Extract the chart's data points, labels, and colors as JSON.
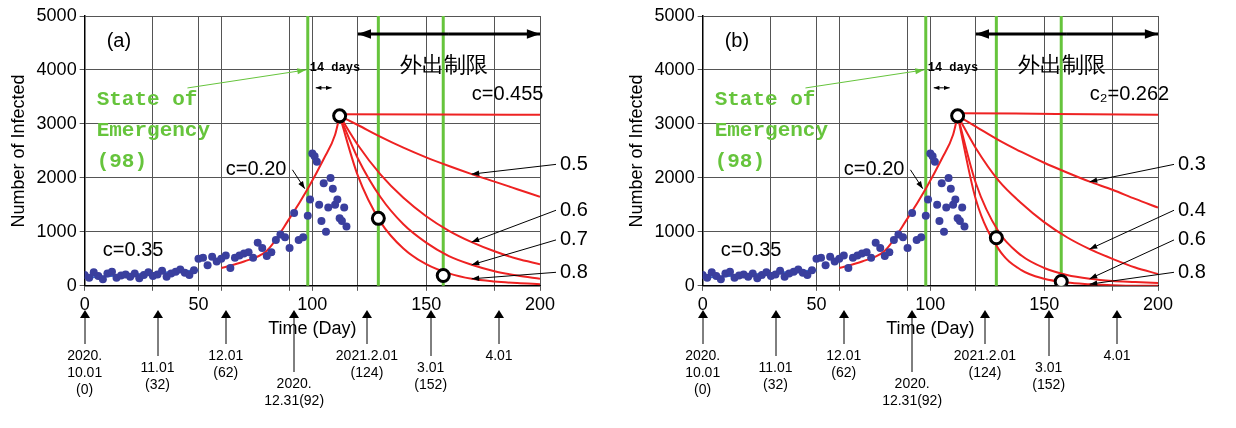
{
  "chart_data": [
    {
      "type": "line",
      "xlabel": "Time (Day)",
      "ylabel": "Number of Infected",
      "xlim": [
        0,
        200
      ],
      "ylim": [
        0,
        5000
      ],
      "xticks": [
        0,
        {
          "value": 30,
          "label": null
        },
        50,
        {
          "value": 60,
          "label": null
        },
        {
          "value": 90,
          "label": null
        },
        100,
        {
          "value": 120,
          "label": null
        },
        150,
        {
          "value": 180,
          "label": null
        },
        200
      ],
      "yticks": [
        0,
        1000,
        2000,
        3000,
        4000,
        5000
      ],
      "grid": true,
      "legend": false,
      "series": [
        {
          "type": "scatter",
          "color": "#3a3f9e",
          "marker": "circle",
          "x": [
            0,
            2,
            4,
            6,
            8,
            10,
            12,
            14,
            16,
            18,
            20,
            22,
            24,
            26,
            28,
            30,
            32,
            34,
            36,
            38,
            40,
            42,
            44,
            46,
            48,
            50,
            52,
            54,
            56,
            58,
            60,
            62,
            64,
            66,
            68,
            70,
            72,
            74,
            76,
            78,
            80,
            82,
            84,
            86,
            88,
            90,
            92,
            94,
            96,
            98,
            99,
            100,
            101,
            102,
            103,
            104,
            105,
            106,
            107,
            108,
            109,
            110,
            111,
            112,
            113,
            114,
            115
          ],
          "values": [
            200,
            150,
            250,
            180,
            120,
            230,
            260,
            150,
            190,
            210,
            170,
            230,
            140,
            200,
            250,
            180,
            210,
            280,
            170,
            230,
            260,
            300,
            240,
            200,
            290,
            500,
            520,
            380,
            540,
            450,
            500,
            560,
            330,
            520,
            560,
            600,
            620,
            520,
            800,
            700,
            550,
            620,
            850,
            950,
            900,
            700,
            1350,
            850,
            900,
            1300,
            1600,
            2450,
            2400,
            2300,
            1500,
            1200,
            1900,
            1000,
            1450,
            2000,
            1800,
            1500,
            1600,
            1250,
            1200,
            1450,
            1100
          ]
        },
        {
          "type": "line",
          "name": "c=0.35",
          "color": "#3366cc",
          "x": [
            0,
            50
          ],
          "values": [
            150,
            290
          ]
        },
        {
          "type": "line",
          "name": "c=0.20",
          "color": "#ee2222",
          "x": [
            60,
            70,
            80,
            90,
            98,
            105,
            110,
            112
          ],
          "values": [
            330,
            450,
            650,
            1250,
            1800,
            2350,
            2800,
            3150
          ]
        },
        {
          "type": "line",
          "name": "c=0.455",
          "color": "#ee2222",
          "x": [
            112,
            200
          ],
          "values": [
            3180,
            3170
          ]
        },
        {
          "type": "line",
          "name": "0.5",
          "color": "#ee2222",
          "x": [
            112,
            120,
            130,
            140,
            150,
            160,
            170,
            180,
            190,
            200
          ],
          "values": [
            3150,
            2980,
            2760,
            2560,
            2380,
            2220,
            2070,
            1930,
            1790,
            1650
          ]
        },
        {
          "type": "line",
          "name": "0.6",
          "color": "#ee2222",
          "x": [
            112,
            120,
            130,
            140,
            150,
            160,
            170,
            180,
            190,
            200
          ],
          "values": [
            3150,
            2610,
            2060,
            1630,
            1290,
            1020,
            810,
            640,
            500,
            400
          ]
        },
        {
          "type": "line",
          "name": "0.7",
          "color": "#ee2222",
          "x": [
            112,
            120,
            130,
            140,
            150,
            160,
            170,
            180,
            190,
            200
          ],
          "values": [
            3150,
            2360,
            1640,
            1140,
            800,
            550,
            390,
            270,
            190,
            130
          ]
        },
        {
          "type": "line",
          "name": "0.8",
          "color": "#ee2222",
          "x": [
            112,
            120,
            130,
            140,
            150,
            160,
            170,
            180,
            190,
            200
          ],
          "values": [
            3150,
            2040,
            1180,
            690,
            400,
            230,
            130,
            80,
            50,
            30
          ]
        },
        {
          "type": "scatter",
          "color": "#000000",
          "marker": "circle",
          "x": [
            112,
            129,
            157.5
          ],
          "values": [
            3150,
            1250,
            190
          ]
        }
      ],
      "ref_lines": [
        {
          "axis": "x",
          "value": 98,
          "color": "#66c43c"
        },
        {
          "axis": "x",
          "value": 129,
          "color": "#66c43c"
        },
        {
          "axis": "x",
          "value": 157.5,
          "color": "#66c43c"
        }
      ],
      "annotations": [
        "(a)",
        "外出制限",
        {
          "text": "State of\nEmergency\n(98)",
          "x": 98,
          "y": 4000
        },
        "14 days",
        "2020.\n10.01\n(0)",
        "11.01\n(32)",
        "12.01\n(62)",
        "2020.\n12.31(92)",
        "2021.2.01\n(124)",
        "3.01\n(152)",
        "4.01"
      ]
    },
    {
      "type": "line",
      "xlabel": "Time (Day)",
      "ylabel": "Number of Infected",
      "xlim": [
        0,
        200
      ],
      "ylim": [
        0,
        5000
      ],
      "xticks": [
        0,
        {
          "value": 30,
          "label": null
        },
        50,
        {
          "value": 60,
          "label": null
        },
        {
          "value": 90,
          "label": null
        },
        100,
        {
          "value": 120,
          "label": null
        },
        150,
        {
          "value": 180,
          "label": null
        },
        200
      ],
      "yticks": [
        0,
        1000,
        2000,
        3000,
        4000,
        5000
      ],
      "grid": true,
      "legend": false,
      "series": [
        {
          "type": "scatter",
          "color": "#3a3f9e",
          "marker": "circle",
          "x": [
            0,
            2,
            4,
            6,
            8,
            10,
            12,
            14,
            16,
            18,
            20,
            22,
            24,
            26,
            28,
            30,
            32,
            34,
            36,
            38,
            40,
            42,
            44,
            46,
            48,
            50,
            52,
            54,
            56,
            58,
            60,
            62,
            64,
            66,
            68,
            70,
            72,
            74,
            76,
            78,
            80,
            82,
            84,
            86,
            88,
            90,
            92,
            94,
            96,
            98,
            99,
            100,
            101,
            102,
            103,
            104,
            105,
            106,
            107,
            108,
            109,
            110,
            111,
            112,
            113,
            114,
            115
          ],
          "values": [
            200,
            150,
            250,
            180,
            120,
            230,
            260,
            150,
            190,
            210,
            170,
            230,
            140,
            200,
            250,
            180,
            210,
            280,
            170,
            230,
            260,
            300,
            240,
            200,
            290,
            500,
            520,
            380,
            540,
            450,
            500,
            560,
            330,
            520,
            560,
            600,
            620,
            520,
            800,
            700,
            550,
            620,
            850,
            950,
            900,
            700,
            1350,
            850,
            900,
            1300,
            1600,
            2450,
            2400,
            2300,
            1500,
            1200,
            1900,
            1000,
            1450,
            2000,
            1800,
            1500,
            1600,
            1250,
            1200,
            1450,
            1100
          ]
        },
        {
          "type": "line",
          "name": "c=0.35",
          "color": "#3366cc",
          "x": [
            0,
            50
          ],
          "values": [
            150,
            290
          ]
        },
        {
          "type": "line",
          "name": "c=0.20",
          "color": "#ee2222",
          "x": [
            60,
            70,
            80,
            90,
            98,
            105,
            110,
            112
          ],
          "values": [
            330,
            450,
            650,
            1250,
            1800,
            2350,
            2800,
            3150
          ]
        },
        {
          "type": "line",
          "name": "c₂=0.262",
          "color": "#ee2222",
          "x": [
            112,
            200
          ],
          "values": [
            3200,
            3170
          ]
        },
        {
          "type": "line",
          "name": "0.3",
          "color": "#ee2222",
          "x": [
            112,
            120,
            130,
            140,
            150,
            160,
            170,
            180,
            190,
            200
          ],
          "values": [
            3150,
            2950,
            2700,
            2480,
            2280,
            2100,
            1930,
            1780,
            1610,
            1450
          ]
        },
        {
          "type": "line",
          "name": "0.4",
          "color": "#ee2222",
          "x": [
            112,
            120,
            130,
            140,
            150,
            160,
            170,
            180,
            190,
            200
          ],
          "values": [
            3150,
            2550,
            1950,
            1530,
            1180,
            900,
            680,
            500,
            340,
            220
          ]
        },
        {
          "type": "line",
          "name": "0.6",
          "color": "#ee2222",
          "x": [
            112,
            120,
            130,
            140,
            150,
            160,
            170,
            180,
            190,
            200
          ],
          "values": [
            3150,
            1900,
            1000,
            560,
            330,
            200,
            130,
            90,
            70,
            50
          ]
        },
        {
          "type": "line",
          "name": "0.8",
          "color": "#ee2222",
          "x": [
            112,
            120,
            130,
            140,
            150,
            160,
            170,
            180,
            190,
            200
          ],
          "values": [
            3150,
            1600,
            680,
            290,
            130,
            60,
            30,
            10,
            0,
            0
          ]
        },
        {
          "type": "scatter",
          "color": "#000000",
          "marker": "circle",
          "x": [
            112,
            129,
            157.5
          ],
          "values": [
            3150,
            890,
            80
          ]
        }
      ],
      "ref_lines": [
        {
          "axis": "x",
          "value": 98,
          "color": "#66c43c"
        },
        {
          "axis": "x",
          "value": 129,
          "color": "#66c43c"
        },
        {
          "axis": "x",
          "value": 157.5,
          "color": "#66c43c"
        }
      ],
      "annotations": [
        "(b)",
        "外出制限",
        {
          "text": "State of\nEmergency\n(98)",
          "x": 98,
          "y": 4000
        },
        "14 days",
        "2020.\n10.01\n(0)",
        "11.01\n(32)",
        "12.01\n(62)",
        "2020.\n12.31(92)",
        "2021.2.01\n(124)",
        "3.01\n(152)",
        "4.01"
      ]
    }
  ]
}
